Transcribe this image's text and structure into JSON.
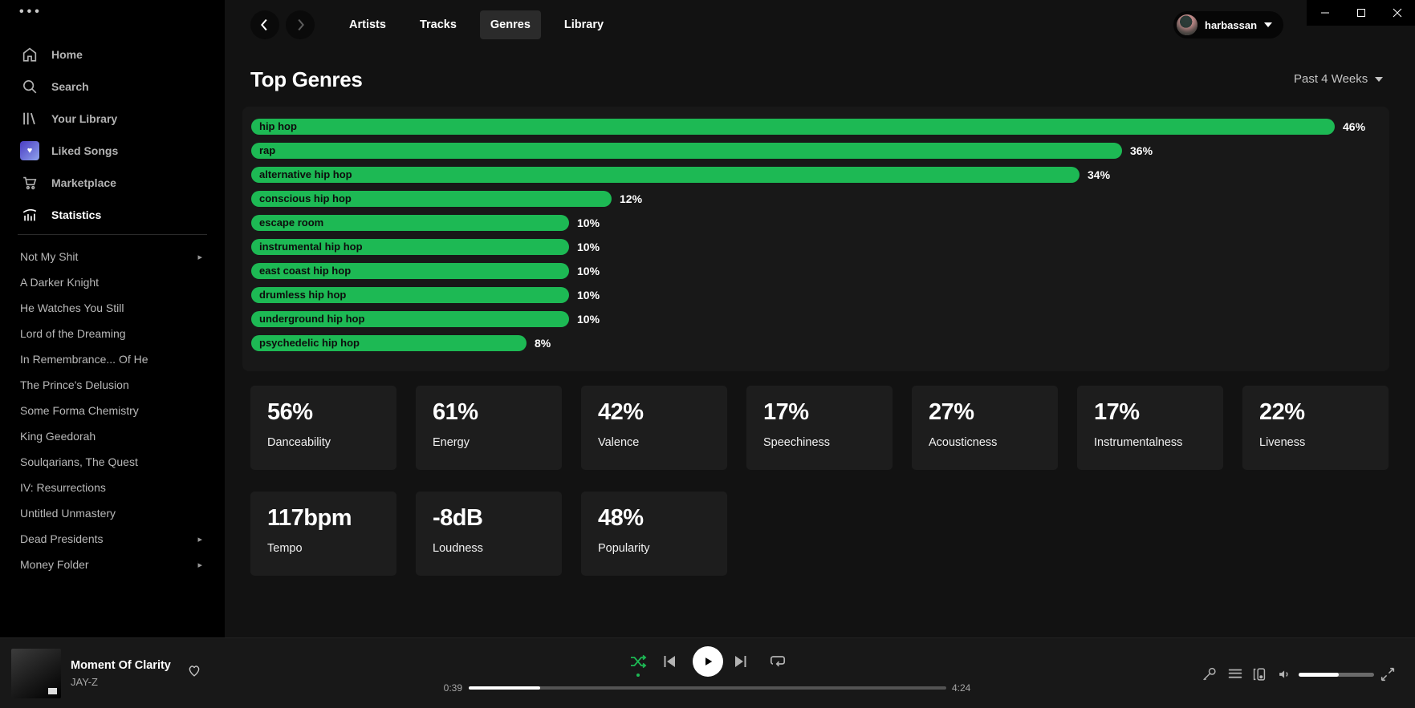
{
  "window": {
    "controls": {
      "minimize": "minimize",
      "maximize": "maximize",
      "close": "close"
    }
  },
  "sidebar": {
    "menu_icon": "ellipsis-menu-icon",
    "nav": [
      {
        "label": "Home",
        "icon": "home-icon",
        "active": false
      },
      {
        "label": "Search",
        "icon": "search-icon",
        "active": false
      },
      {
        "label": "Your Library",
        "icon": "library-icon",
        "active": false
      },
      {
        "label": "Liked Songs",
        "icon": "liked-songs-icon",
        "active": false
      },
      {
        "label": "Marketplace",
        "icon": "cart-icon",
        "active": false
      },
      {
        "label": "Statistics",
        "icon": "stats-icon",
        "active": true
      }
    ],
    "playlists": [
      {
        "label": "Not My Shit",
        "has_submenu": true
      },
      {
        "label": "A Darker Knight",
        "has_submenu": false
      },
      {
        "label": "He Watches You Still",
        "has_submenu": false
      },
      {
        "label": "Lord of the Dreaming",
        "has_submenu": false
      },
      {
        "label": "In Remembrance... Of He",
        "has_submenu": false
      },
      {
        "label": "The Prince's Delusion",
        "has_submenu": false
      },
      {
        "label": "Some Forma Chemistry",
        "has_submenu": false
      },
      {
        "label": "King Geedorah",
        "has_submenu": false
      },
      {
        "label": "Soulqarians, The Quest",
        "has_submenu": false
      },
      {
        "label": "IV: Resurrections",
        "has_submenu": false
      },
      {
        "label": "Untitled Unmastery",
        "has_submenu": false
      },
      {
        "label": "Dead Presidents",
        "has_submenu": true
      },
      {
        "label": "Money Folder",
        "has_submenu": true
      }
    ]
  },
  "topnav": {
    "tabs": [
      {
        "label": "Artists",
        "active": false
      },
      {
        "label": "Tracks",
        "active": false
      },
      {
        "label": "Genres",
        "active": true
      },
      {
        "label": "Library",
        "active": false
      }
    ],
    "user": {
      "name": "harbassan"
    }
  },
  "page": {
    "title": "Top Genres",
    "time_range": "Past 4 Weeks"
  },
  "chart_data": {
    "type": "bar",
    "orientation": "horizontal",
    "title": "Top Genres",
    "categories": [
      "hip hop",
      "rap",
      "alternative hip hop",
      "conscious hip hop",
      "escape room",
      "instrumental hip hop",
      "east coast hip hop",
      "drumless hip hop",
      "underground hip hop",
      "psychedelic hip hop"
    ],
    "values": [
      46,
      36,
      34,
      12,
      10,
      10,
      10,
      10,
      10,
      8
    ],
    "unit": "%",
    "xlim": [
      0,
      50
    ],
    "bar_color": "#1db954",
    "grid": false,
    "legend": false
  },
  "stats": [
    {
      "value": "56%",
      "label": "Danceability"
    },
    {
      "value": "61%",
      "label": "Energy"
    },
    {
      "value": "42%",
      "label": "Valence"
    },
    {
      "value": "17%",
      "label": "Speechiness"
    },
    {
      "value": "27%",
      "label": "Acousticness"
    },
    {
      "value": "17%",
      "label": "Instrumentalness"
    },
    {
      "value": "22%",
      "label": "Liveness"
    },
    {
      "value": "117bpm",
      "label": "Tempo"
    },
    {
      "value": "-8dB",
      "label": "Loudness"
    },
    {
      "value": "48%",
      "label": "Popularity"
    }
  ],
  "player": {
    "track": "Moment Of Clarity",
    "artist": "JAY-Z",
    "elapsed": "0:39",
    "duration": "4:24",
    "progress_pct": 15,
    "shuffle_on": true,
    "volume_pct": 53
  },
  "colors": {
    "accent": "#1db954",
    "background": "#121212",
    "sidebar": "#000000",
    "card": "#1d1d1d",
    "player_bar": "#181818"
  }
}
